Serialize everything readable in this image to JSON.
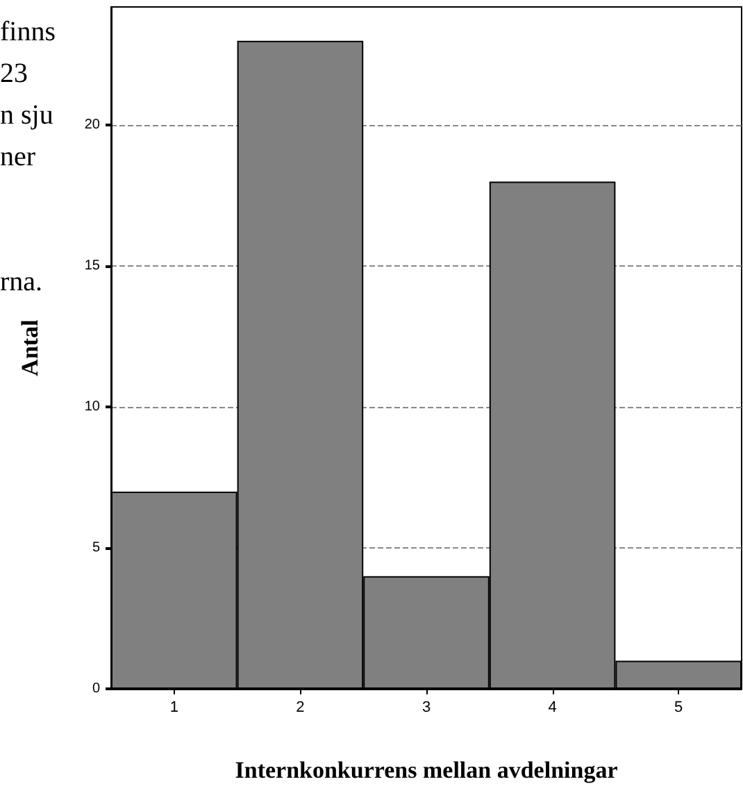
{
  "chart_data": {
    "type": "bar",
    "xlabel": "Internkonkurrens mellan avdelningar",
    "ylabel": "Antal",
    "categories": [
      "1",
      "2",
      "3",
      "4",
      "5"
    ],
    "values": [
      7,
      23,
      4,
      18,
      1
    ],
    "color": "#808080",
    "ylim": [
      0,
      24.2
    ],
    "yticks": [
      0,
      5,
      10,
      15,
      20
    ],
    "grid": "y",
    "annotations": [
      "finns",
      "23",
      "n sju",
      "ner",
      "rna."
    ]
  }
}
